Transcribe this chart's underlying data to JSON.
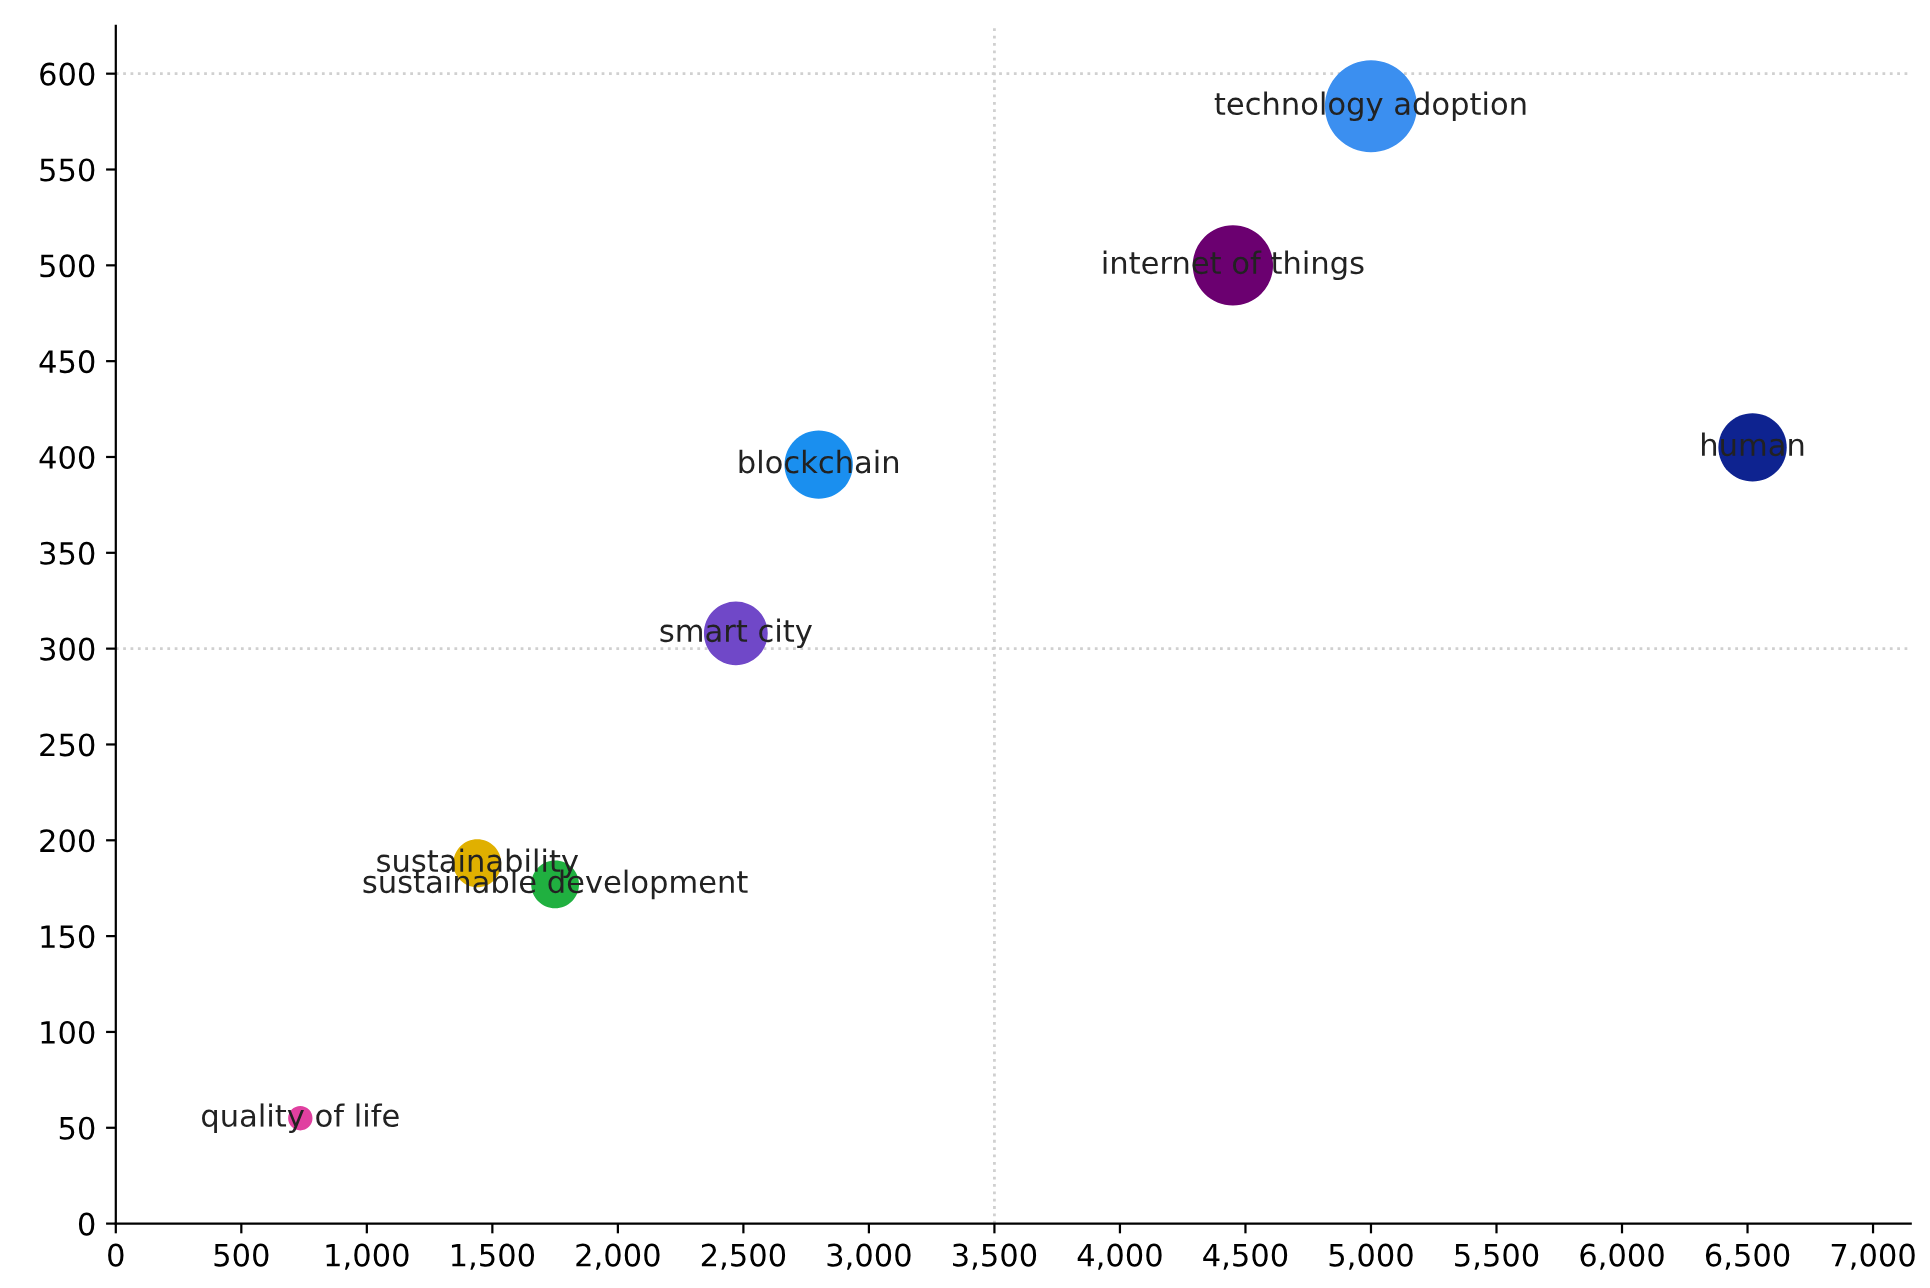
{
  "chart_data": {
    "type": "bubble",
    "series": [
      {
        "name": "technology adoption",
        "color": "#3b8ff0",
        "x": [
          5000
        ],
        "values": [
          583
        ],
        "sizes": [
          1
        ]
      },
      {
        "name": "internet of things",
        "color": "#6b0070",
        "x": [
          4450
        ],
        "values": [
          500
        ],
        "sizes": [
          0.76
        ]
      },
      {
        "name": "human",
        "color": "#0e2390",
        "x": [
          6520
        ],
        "values": [
          405
        ],
        "sizes": [
          0.55
        ]
      },
      {
        "name": "blockchain",
        "color": "#1a8fef",
        "x": [
          2800
        ],
        "values": [
          396
        ],
        "sizes": [
          0.55
        ]
      },
      {
        "name": "smart city",
        "color": "#7048c8",
        "x": [
          2470
        ],
        "values": [
          308
        ],
        "sizes": [
          0.48
        ]
      },
      {
        "name": "sustainability",
        "color": "#e0b000",
        "x": [
          1440
        ],
        "values": [
          188
        ],
        "sizes": [
          0.27
        ]
      },
      {
        "name": "sustainable development",
        "color": "#20b040",
        "x": [
          1750
        ],
        "values": [
          177
        ],
        "sizes": [
          0.27
        ]
      },
      {
        "name": "quality of life",
        "color": "#e040a0",
        "x": [
          735
        ],
        "values": [
          55
        ],
        "sizes": [
          0.07
        ]
      }
    ],
    "xlim": [
      0,
      7150
    ],
    "ylim": [
      0,
      625
    ],
    "xticks": [
      0,
      500,
      {
        "value": 1000,
        "label": "1,000"
      },
      {
        "value": 1500,
        "label": "1,500"
      },
      {
        "value": 2000,
        "label": "2,000"
      },
      {
        "value": 2500,
        "label": "2,500"
      },
      {
        "value": 3000,
        "label": "3,000"
      },
      {
        "value": 3500,
        "label": "3,500"
      },
      {
        "value": 4000,
        "label": "4,000"
      },
      {
        "value": 4500,
        "label": "4,500"
      },
      {
        "value": 5000,
        "label": "5,000"
      },
      {
        "value": 5500,
        "label": "5,500"
      },
      {
        "value": 6000,
        "label": "6,000"
      },
      {
        "value": 6500,
        "label": "6,500"
      },
      {
        "value": 7000,
        "label": "7,000"
      }
    ],
    "yticks": [
      0,
      50,
      100,
      150,
      200,
      250,
      300,
      350,
      400,
      450,
      500,
      550,
      600
    ],
    "ref_lines": [
      {
        "axis": "x",
        "value": 3500,
        "line_style": "dotted",
        "color": "#d0d0d0"
      },
      {
        "axis": "y",
        "value": 300,
        "line_style": "dotted",
        "color": "#d0d0d0"
      },
      {
        "axis": "y",
        "value": 600,
        "line_style": "dotted",
        "color": "#d0d0d0"
      }
    ],
    "grid": false,
    "legend": false
  }
}
